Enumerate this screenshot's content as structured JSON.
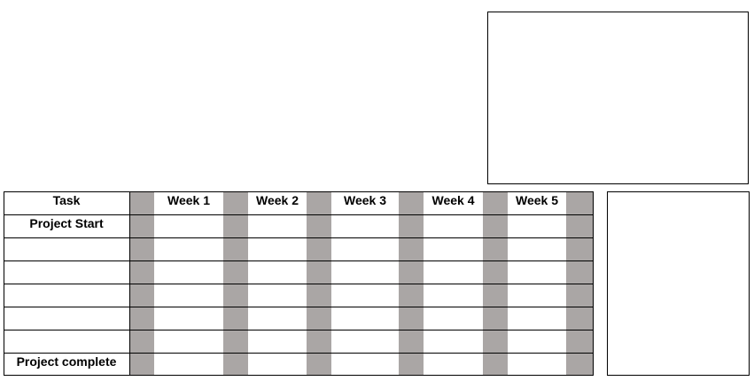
{
  "gantt": {
    "task_header": "Task",
    "weeks": [
      "Week 1",
      "Week 2",
      "Week 3",
      "Week 4",
      "Week 5"
    ],
    "tasks": [
      "Project Start",
      "",
      "",
      "",
      "",
      "",
      "Project complete"
    ]
  },
  "colors": {
    "separator": "#aaa6a5",
    "border": "#000000",
    "background": "#ffffff"
  }
}
